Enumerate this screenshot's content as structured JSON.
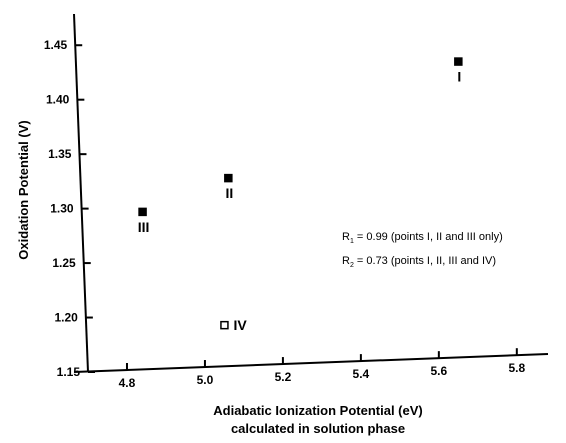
{
  "chart_data": {
    "type": "scatter",
    "xlabel": "Adiabatic Ionization Potential (eV)",
    "xlabel_line2": "calculated in solution phase",
    "ylabel": "Oxidation Potential (V)",
    "xlim": [
      4.7,
      5.88
    ],
    "ylim": [
      1.15,
      1.475
    ],
    "xticks": [
      4.8,
      5.0,
      5.2,
      5.4,
      5.6,
      5.8
    ],
    "xtick_labels": [
      "4.8",
      "5.0",
      "5.2",
      "5.4",
      "5.6",
      "5.8"
    ],
    "yticks": [
      1.15,
      1.2,
      1.25,
      1.3,
      1.35,
      1.4,
      1.45
    ],
    "ytick_labels": [
      "1.15",
      "1.20",
      "1.25",
      "1.30",
      "1.35",
      "1.40",
      "1.45"
    ],
    "points": [
      {
        "label": "I",
        "x": 5.65,
        "y": 1.435,
        "marker": "filled-square"
      },
      {
        "label": "II",
        "x": 5.06,
        "y": 1.328,
        "marker": "filled-square"
      },
      {
        "label": "III",
        "x": 4.84,
        "y": 1.297,
        "marker": "filled-square"
      },
      {
        "label": "IV",
        "x": 5.05,
        "y": 1.193,
        "marker": "open-square"
      }
    ],
    "annotations": [
      {
        "main": "R",
        "sub": "1",
        "text": " = 0.99 (points I, II and III only)"
      },
      {
        "main": "R",
        "sub": "2",
        "text": " = 0.73 (points I, II, III and IV)"
      }
    ],
    "grid": false
  }
}
